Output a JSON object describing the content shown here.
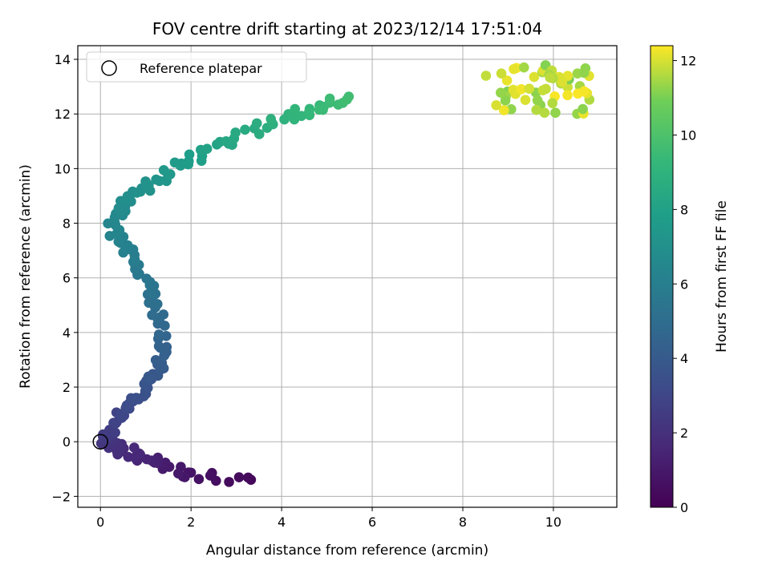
{
  "chart_data": {
    "type": "scatter",
    "title": "FOV centre drift starting at 2023/12/14 17:51:04",
    "xlabel": "Angular distance from reference (arcmin)",
    "ylabel": "Rotation from reference (arcmin)",
    "xlim": [
      -0.5,
      11.4
    ],
    "ylim": [
      -2.4,
      14.5
    ],
    "xticks": [
      0,
      2,
      4,
      6,
      8,
      10
    ],
    "yticks": [
      -2,
      0,
      2,
      4,
      6,
      8,
      10,
      12,
      14
    ],
    "grid": true,
    "legend": {
      "position": "top-left",
      "entries": [
        "Reference platepar"
      ]
    },
    "reference_point": {
      "x": 0,
      "y": 0
    },
    "colorbar": {
      "label": "Hours from first FF file",
      "colormap": "viridis",
      "range": [
        0,
        12.4
      ],
      "ticks": [
        0,
        2,
        4,
        6,
        8,
        10,
        12
      ]
    },
    "trajectory_anchors": [
      {
        "x": 3.3,
        "y": -1.4,
        "h": 0.3
      },
      {
        "x": 1.9,
        "y": -1.25,
        "h": 0.8
      },
      {
        "x": 1.3,
        "y": -0.75,
        "h": 1.2
      },
      {
        "x": 0.9,
        "y": -0.55,
        "h": 1.5
      },
      {
        "x": 0.5,
        "y": -0.3,
        "h": 1.8
      },
      {
        "x": 0.3,
        "y": -0.1,
        "h": 2.0
      },
      {
        "x": 0.1,
        "y": 0.1,
        "h": 2.3
      },
      {
        "x": 0.2,
        "y": 0.5,
        "h": 2.6
      },
      {
        "x": 0.5,
        "y": 1.1,
        "h": 3.0
      },
      {
        "x": 0.8,
        "y": 1.7,
        "h": 3.4
      },
      {
        "x": 1.1,
        "y": 2.3,
        "h": 3.8
      },
      {
        "x": 1.35,
        "y": 3.0,
        "h": 4.2
      },
      {
        "x": 1.4,
        "y": 4.0,
        "h": 4.6
      },
      {
        "x": 1.25,
        "y": 4.9,
        "h": 5.0
      },
      {
        "x": 1.05,
        "y": 5.7,
        "h": 5.4
      },
      {
        "x": 0.8,
        "y": 6.6,
        "h": 5.8
      },
      {
        "x": 0.4,
        "y": 7.3,
        "h": 6.2
      },
      {
        "x": 0.25,
        "y": 8.1,
        "h": 6.5
      },
      {
        "x": 0.5,
        "y": 8.8,
        "h": 6.8
      },
      {
        "x": 1.0,
        "y": 9.3,
        "h": 7.1
      },
      {
        "x": 1.6,
        "y": 9.9,
        "h": 7.5
      },
      {
        "x": 2.3,
        "y": 10.6,
        "h": 8.0
      },
      {
        "x": 3.2,
        "y": 11.3,
        "h": 8.5
      },
      {
        "x": 4.1,
        "y": 11.9,
        "h": 9.0
      },
      {
        "x": 4.8,
        "y": 12.2,
        "h": 9.4
      },
      {
        "x": 5.5,
        "y": 12.6,
        "h": 9.7
      }
    ],
    "late_cluster": {
      "x": [
        8.5,
        10.9
      ],
      "y": [
        12.0,
        13.8
      ],
      "h": [
        11.0,
        12.4
      ]
    }
  }
}
